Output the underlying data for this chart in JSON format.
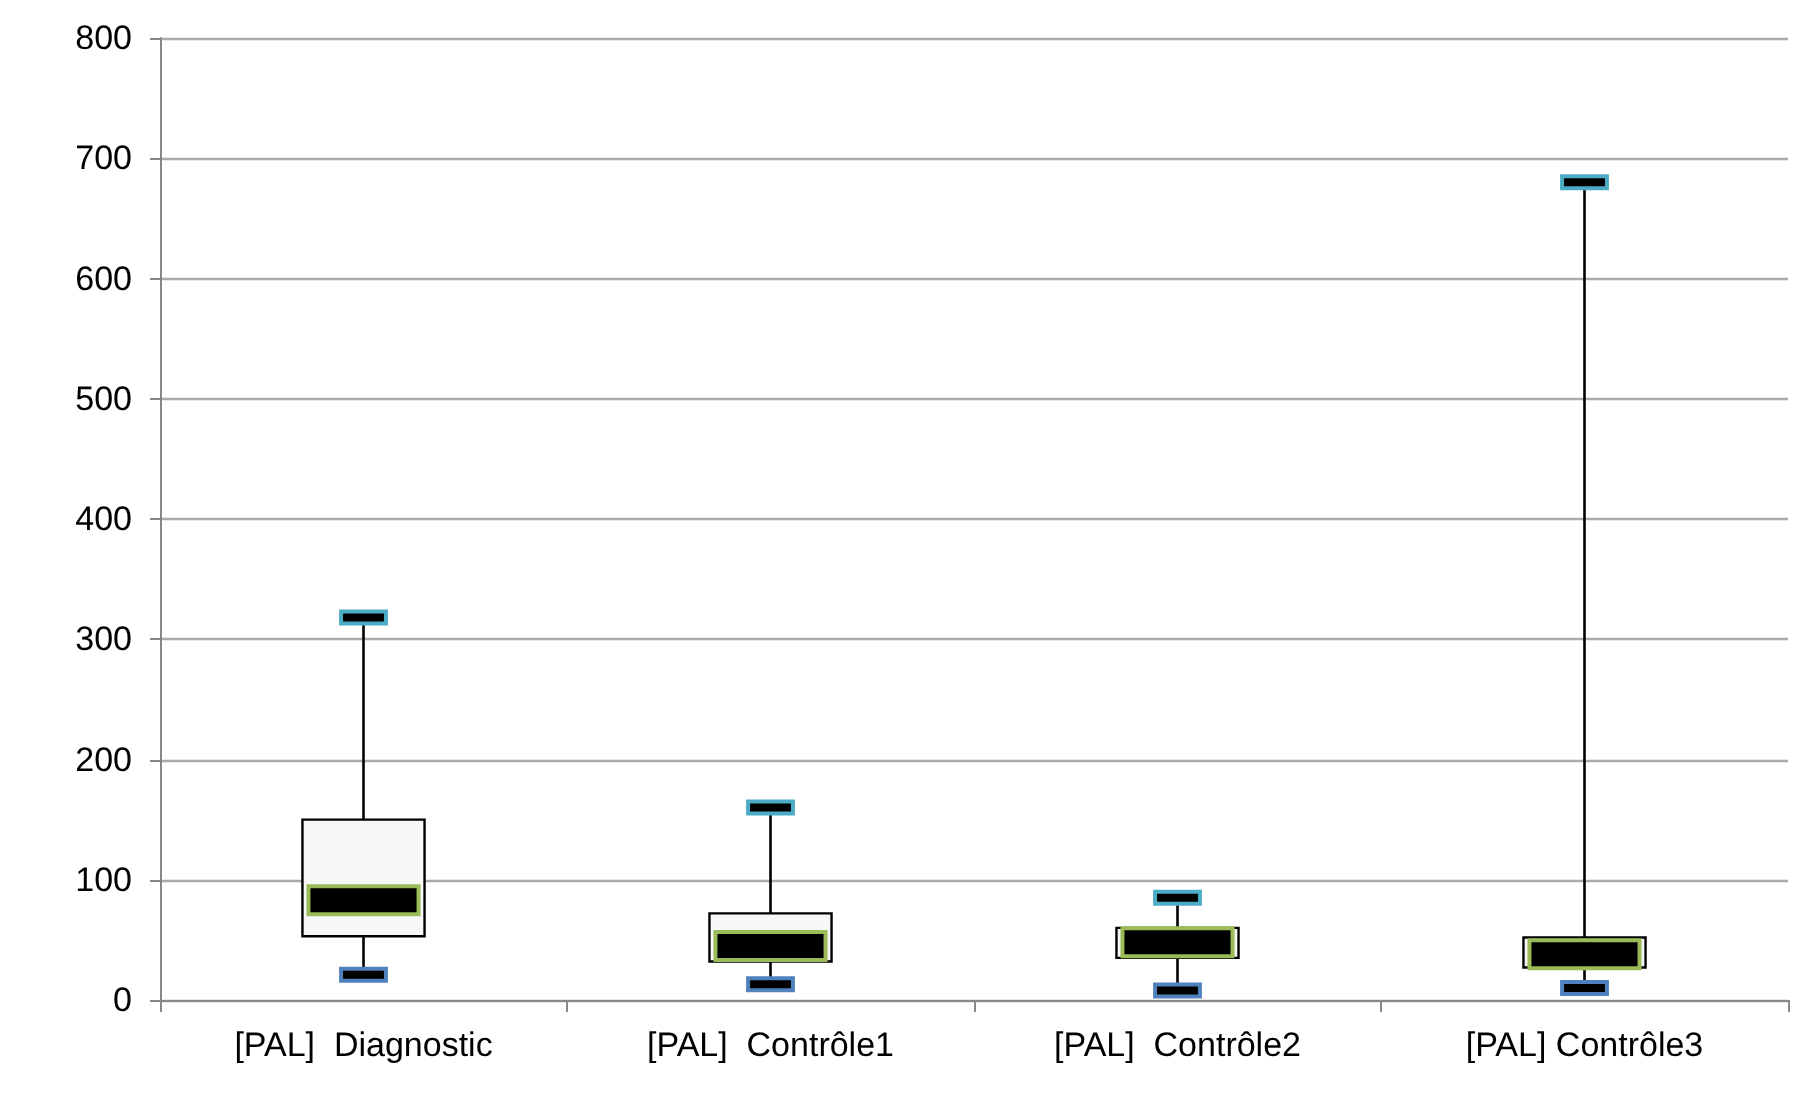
{
  "chart_data": {
    "type": "box",
    "categories": [
      "[PAL]  Diagnostic",
      "[PAL]  Contrôle1",
      "[PAL]  Contrôle2",
      "[PAL] Contrôle3"
    ],
    "boxes": [
      {
        "low": 21,
        "q1": 53,
        "median": 83,
        "q3": 150,
        "high": 318
      },
      {
        "low": 13,
        "q1": 32,
        "median": 45,
        "q3": 72,
        "high": 160
      },
      {
        "low": 8,
        "q1": 35,
        "median": 48,
        "q3": 60,
        "high": 85
      },
      {
        "low": 10,
        "q1": 27,
        "median": 38,
        "q3": 52,
        "high": 680
      }
    ],
    "ylim": [
      0,
      800
    ],
    "yticks": [
      0,
      100,
      200,
      300,
      400,
      500,
      600,
      700,
      800
    ],
    "grid": "y"
  }
}
